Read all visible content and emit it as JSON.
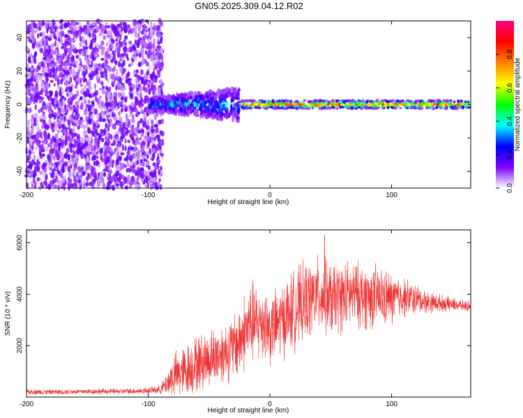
{
  "title": "GN05.2025.309.04.12.R02",
  "chart_data": [
    {
      "type": "heatmap",
      "name": "spectrogram",
      "xlabel": "Height of straight line (km)",
      "ylabel": "Frequency (Hz)",
      "xlim": [
        -200,
        165
      ],
      "ylim": [
        -50,
        50
      ],
      "xticks": [
        -200,
        -100,
        0,
        100
      ],
      "yticks": [
        -40,
        -20,
        0,
        20,
        40
      ],
      "colorbar": {
        "label": "Normalized spectral amplitude",
        "range": [
          0,
          1
        ],
        "ticks": [
          0.0,
          0.2,
          0.4,
          0.6,
          0.8
        ],
        "tick_labels": [
          "0.0",
          "0.2",
          "0.4",
          "0.6",
          "0.8"
        ],
        "colormap": [
          "#ffffff",
          "#7e00ff",
          "#0000ff",
          "#00ffff",
          "#00ff00",
          "#ffff00",
          "#ff8000",
          "#ff0000",
          "#ff0080"
        ]
      },
      "regions": [
        {
          "x_range": [
            -200,
            -88
          ],
          "description": "broadband noise, amplitude 0.0-0.2 across all frequencies"
        },
        {
          "x_range": [
            -100,
            -25
          ],
          "freq_center": 0,
          "freq_halfwidth": 8,
          "amplitude_max": 0.4
        },
        {
          "x_range": [
            -25,
            165
          ],
          "freq_center": 0,
          "freq_halfwidth": 2,
          "amplitude_max": 0.95
        }
      ]
    },
    {
      "type": "line",
      "name": "snr",
      "xlabel": "Height of straight line (km)",
      "ylabel": "SNR (10 * v/v)",
      "xlim": [
        -200,
        165
      ],
      "ylim": [
        0,
        6500
      ],
      "xticks": [
        -200,
        -100,
        0,
        100
      ],
      "yticks": [
        2000,
        4000,
        6000
      ],
      "color": "#ee3333",
      "series": [
        {
          "name": "SNR",
          "x": [
            -200,
            -175,
            -150,
            -125,
            -100,
            -90,
            -85,
            -80,
            -70,
            -60,
            -50,
            -40,
            -30,
            -25,
            -20,
            -15,
            -10,
            -5,
            0,
            10,
            20,
            30,
            40,
            50,
            60,
            70,
            80,
            90,
            100,
            110,
            120,
            130,
            140,
            150,
            160,
            165
          ],
          "y_mean": [
            200,
            200,
            220,
            220,
            250,
            300,
            500,
            800,
            1000,
            1300,
            1500,
            1700,
            1900,
            2200,
            2600,
            2900,
            2800,
            3000,
            2600,
            3000,
            3400,
            3700,
            4000,
            3800,
            3900,
            4000,
            3900,
            3900,
            3800,
            3900,
            3800,
            3700,
            3650,
            3600,
            3550,
            3550
          ],
          "y_spread": [
            120,
            120,
            130,
            130,
            150,
            200,
            500,
            1000,
            1200,
            1300,
            1300,
            1400,
            1500,
            1700,
            1800,
            1900,
            1800,
            1800,
            1600,
            1700,
            1800,
            1800,
            1700,
            1700,
            1600,
            1500,
            1500,
            1400,
            1200,
            900,
            700,
            500,
            400,
            300,
            250,
            250
          ],
          "peak": {
            "x": 45,
            "y": 6300
          }
        }
      ]
    }
  ]
}
